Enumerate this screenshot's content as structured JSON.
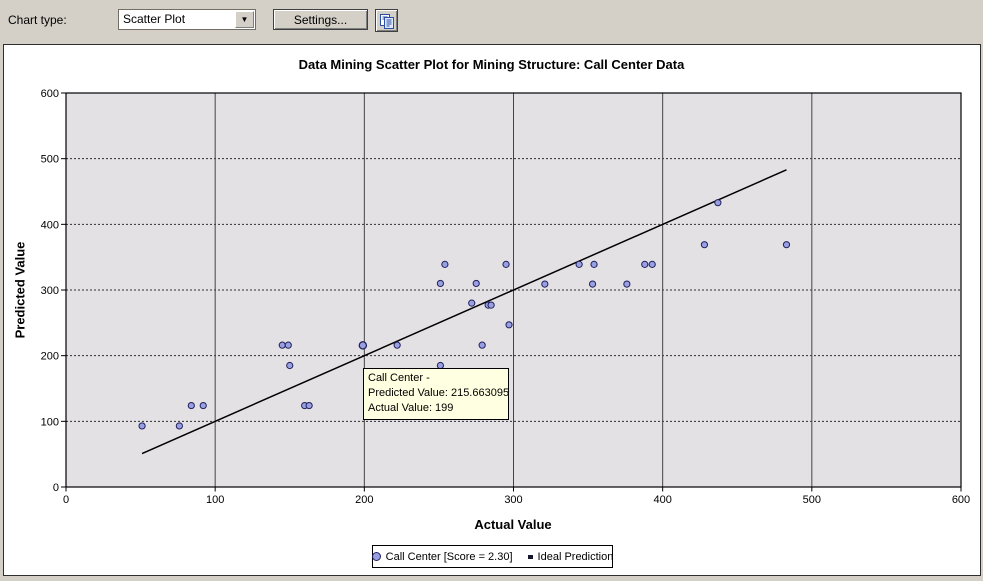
{
  "toolbar": {
    "chart_type_label": "Chart type:",
    "chart_type_value": "Scatter Plot",
    "settings_button": "Settings...",
    "copy_button_icon": "copy-icon"
  },
  "chart": {
    "title": "Data Mining Scatter Plot for Mining Structure: Call Center Data",
    "xlabel": "Actual Value",
    "ylabel": "Predicted Value"
  },
  "tooltip": {
    "lines": [
      "Call Center -",
      "Predicted Value: 215.663095",
      "Actual Value: 199"
    ]
  },
  "legend": {
    "items": [
      {
        "marker": "circle-icon",
        "label": "Call Center [Score = 2.30]"
      },
      {
        "marker": "square-icon",
        "label": "Ideal Prediction"
      }
    ]
  },
  "colors": {
    "window_bg": "#d4d0c8",
    "panel_bg": "#ffffff",
    "plot_bg": "#e4e1e5",
    "grid_vertical": "#444444",
    "grid_horizontal": "#2e2e2e",
    "axis": "#000000",
    "point_fill": "#99a0e2",
    "point_stroke": "#20205c",
    "ideal_line": "#000000",
    "tooltip_bg": "#ffffe1"
  },
  "chart_data": {
    "type": "scatter",
    "title": "Data Mining Scatter Plot for Mining Structure: Call Center Data",
    "xlabel": "Actual Value",
    "ylabel": "Predicted Value",
    "xlim": [
      0,
      600
    ],
    "ylim": [
      0,
      600
    ],
    "xticks": [
      0,
      100,
      200,
      300,
      400,
      500,
      600
    ],
    "yticks": [
      0,
      100,
      200,
      300,
      400,
      500,
      600
    ],
    "grid": {
      "vertical": "solid",
      "horizontal": "dashed"
    },
    "legend_position": "bottom-center",
    "series": [
      {
        "name": "Call Center [Score = 2.30]",
        "type": "scatter",
        "points": [
          [
            51,
            93
          ],
          [
            76,
            93
          ],
          [
            84,
            124
          ],
          [
            92,
            124
          ],
          [
            160,
            124
          ],
          [
            163,
            124
          ],
          [
            145,
            216
          ],
          [
            149,
            216
          ],
          [
            150,
            185
          ],
          [
            199,
            215.663095
          ],
          [
            222,
            216
          ],
          [
            251,
            185
          ],
          [
            251,
            310
          ],
          [
            254,
            339
          ],
          [
            272,
            280
          ],
          [
            275,
            310
          ],
          [
            279,
            216
          ],
          [
            283,
            277
          ],
          [
            285,
            277
          ],
          [
            295,
            339
          ],
          [
            297,
            247
          ],
          [
            321,
            309
          ],
          [
            344,
            339
          ],
          [
            353,
            309
          ],
          [
            354,
            339
          ],
          [
            376,
            309
          ],
          [
            388,
            339
          ],
          [
            393,
            339
          ],
          [
            428,
            369
          ],
          [
            437,
            433
          ],
          [
            483,
            369
          ]
        ]
      },
      {
        "name": "Ideal Prediction",
        "type": "line",
        "from": [
          51,
          51
        ],
        "to": [
          483,
          483
        ]
      }
    ],
    "hovered_point": [
      199,
      215.663095
    ]
  }
}
